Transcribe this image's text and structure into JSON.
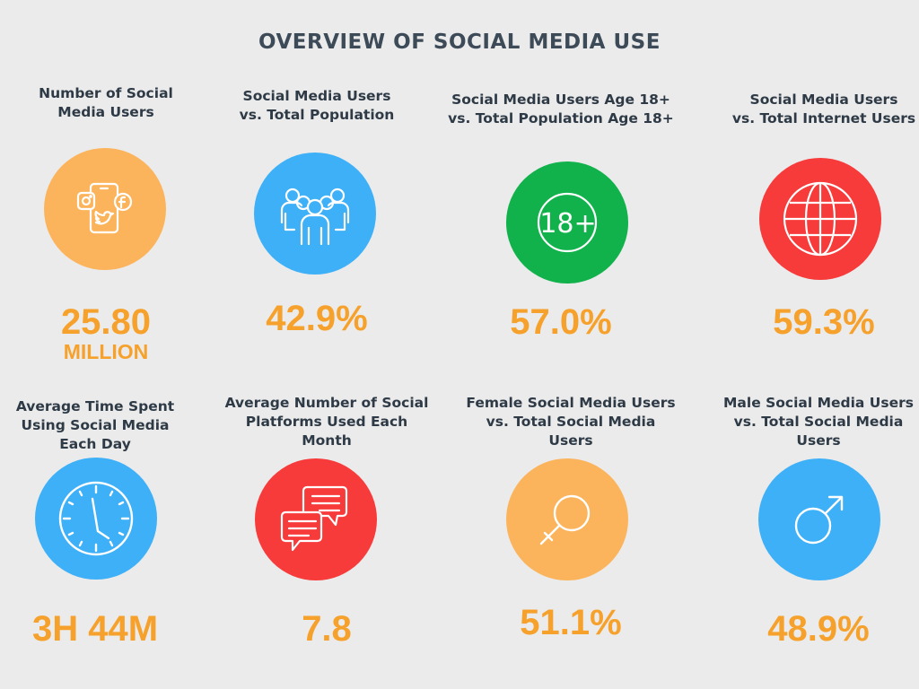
{
  "title": "OVERVIEW OF SOCIAL MEDIA USE",
  "colors": {
    "background": "#ebebeb",
    "value_text": "#f6a12c",
    "label_text": "#2e3a46",
    "orange": "#fbb45c",
    "blue": "#3eb0f7",
    "green": "#11b24b",
    "red": "#f73a3a"
  },
  "stats": [
    {
      "label_lines": [
        "Number of Social",
        "Media Users"
      ],
      "icon": "social-apps-phone-icon",
      "circle_color": "#fbb45c",
      "value": "25.80",
      "unit": "MILLION"
    },
    {
      "label_lines": [
        "Social Media Users",
        "vs. Total Population"
      ],
      "icon": "people-group-icon",
      "circle_color": "#3eb0f7",
      "value": "42.9%"
    },
    {
      "label_lines": [
        "Social Media Users Age 18+",
        "vs. Total Population Age 18+"
      ],
      "icon": "age-18-plus-icon",
      "icon_text": "18+",
      "circle_color": "#11b24b",
      "value": "57.0%"
    },
    {
      "label_lines": [
        "Social Media Users",
        "vs. Total Internet Users"
      ],
      "icon": "globe-icon",
      "circle_color": "#f73a3a",
      "value": "59.3%"
    },
    {
      "label_lines": [
        "Average Time Spent",
        "Using Social Media",
        "Each Day"
      ],
      "icon": "clock-icon",
      "circle_color": "#3eb0f7",
      "value": "3H 44M"
    },
    {
      "label_lines": [
        "Average Number of Social",
        "Platforms Used Each",
        "Month"
      ],
      "icon": "chat-bubbles-icon",
      "circle_color": "#f73a3a",
      "value": "7.8"
    },
    {
      "label_lines": [
        "Female Social Media Users",
        "vs.  Total Social Media",
        "Users"
      ],
      "icon": "female-symbol-icon",
      "circle_color": "#fbb45c",
      "value": "51.1%"
    },
    {
      "label_lines": [
        "Male Social Media Users",
        "vs. Total Social Media",
        "Users"
      ],
      "icon": "male-symbol-icon",
      "circle_color": "#3eb0f7",
      "value": "48.9%"
    }
  ]
}
